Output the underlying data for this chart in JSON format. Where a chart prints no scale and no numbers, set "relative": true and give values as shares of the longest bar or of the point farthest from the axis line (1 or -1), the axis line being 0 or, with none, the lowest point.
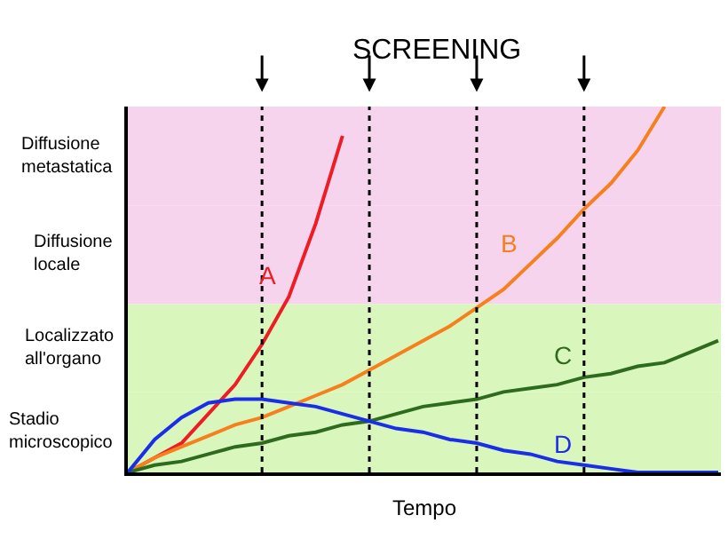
{
  "chart_data": {
    "type": "line",
    "title": "SCREENING",
    "xlabel": "Tempo",
    "relative": true,
    "legend": false,
    "grid": "x",
    "marker": "none",
    "line_style": "solid",
    "categories": [
      null,
      null,
      null,
      null,
      null,
      null,
      null,
      null,
      null,
      null,
      null,
      null,
      null,
      null,
      null,
      null,
      null,
      null,
      null,
      null,
      null,
      null,
      null
    ],
    "series": [
      {
        "name": "A",
        "color": "#ee1c25",
        "values": [
          0,
          0.04,
          0.08,
          0.16,
          0.24,
          0.35,
          0.48,
          0.68,
          0.92,
          null,
          null,
          null,
          null,
          null,
          null,
          null,
          null,
          null,
          null,
          null,
          null,
          null,
          null
        ]
      },
      {
        "name": "B",
        "color": "#f7801e",
        "values": [
          0,
          0.04,
          0.07,
          0.1,
          0.13,
          0.15,
          0.18,
          0.21,
          0.24,
          0.28,
          0.32,
          0.36,
          0.4,
          0.45,
          0.5,
          0.57,
          0.64,
          0.72,
          0.79,
          0.88,
          1.0,
          null,
          null
        ]
      },
      {
        "name": "C",
        "color": "#2e6b1e",
        "values": [
          0,
          0.02,
          0.03,
          0.05,
          0.07,
          0.08,
          0.1,
          0.11,
          0.13,
          0.14,
          0.16,
          0.18,
          0.19,
          0.2,
          0.22,
          0.23,
          0.24,
          0.26,
          0.27,
          0.29,
          0.3,
          0.33,
          0.36
        ]
      },
      {
        "name": "D",
        "color": "#1a2ee8",
        "values": [
          0,
          0.09,
          0.15,
          0.19,
          0.2,
          0.2,
          0.19,
          0.18,
          0.16,
          0.14,
          0.12,
          0.11,
          0.09,
          0.08,
          0.06,
          0.05,
          0.03,
          0.02,
          0.01,
          0,
          0,
          0,
          0
        ]
      }
    ],
    "bands": [
      {
        "axis": "y",
        "from": 0.73,
        "to": 1.0,
        "label": "Diffusione metastatica",
        "color": "#f7d4ee"
      },
      {
        "axis": "y",
        "from": 0.46,
        "to": 0.73,
        "label": "Diffusione locale",
        "color": "#f7d4ee"
      },
      {
        "axis": "y",
        "from": 0.22,
        "to": 0.46,
        "label": "Localizzato all'organo",
        "color": "#d9f7bd"
      },
      {
        "axis": "y",
        "from": 0,
        "to": 0.22,
        "label": "Stadio microscopico",
        "color": "#d9f7bd"
      }
    ]
  }
}
